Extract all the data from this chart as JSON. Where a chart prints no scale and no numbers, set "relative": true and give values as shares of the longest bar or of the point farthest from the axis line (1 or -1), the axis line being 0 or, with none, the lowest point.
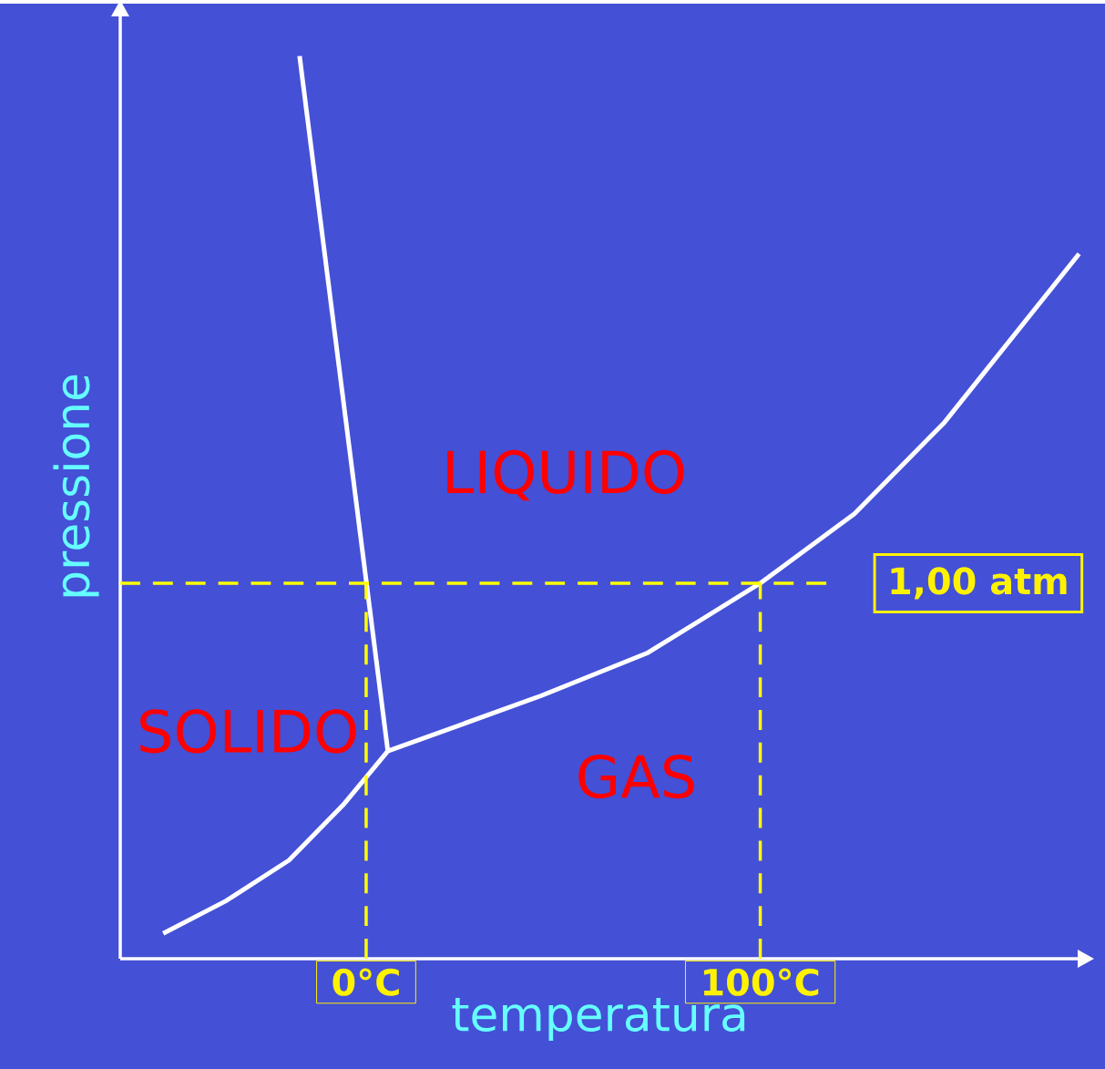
{
  "chart_data": {
    "type": "line",
    "relative": true,
    "xlabel": "temperatura",
    "ylabel": "pressione",
    "xlim": [
      -62.4,
      181
    ],
    "xticks": [
      {
        "value": 0,
        "label": "0°C"
      },
      {
        "value": 100,
        "label": "100°C"
      }
    ],
    "series": [
      {
        "color": "#ffffff",
        "x": [
          -16.9,
          5.5
        ],
        "values": [
          1,
          0.23
        ]
      },
      {
        "color": "#ffffff",
        "x": [
          -51.5,
          -35.6,
          -19.6,
          -5.9,
          5.5
        ],
        "values": [
          0.028,
          0.064,
          0.109,
          0.17,
          0.23
        ]
      },
      {
        "color": "#ffffff",
        "x": [
          5.5,
          44.2,
          71.5,
          100,
          123.9,
          146.7,
          180.9
        ],
        "values": [
          0.23,
          0.291,
          0.339,
          0.416,
          0.493,
          0.594,
          0.781
        ]
      }
    ],
    "ref_lines": [
      {
        "axis": "y",
        "value": 0.416,
        "label": "1,00 atm",
        "color": "#ffff00",
        "line_style": "dashed"
      },
      {
        "axis": "x",
        "value": 0,
        "color": "#ffff00",
        "line_style": "dashed"
      },
      {
        "axis": "x",
        "value": 100,
        "color": "#ffff00",
        "line_style": "dashed"
      }
    ],
    "annotations": [
      "LIQUIDO",
      "SOLIDO",
      "GAS"
    ],
    "line_style": "solid",
    "grid": false
  }
}
